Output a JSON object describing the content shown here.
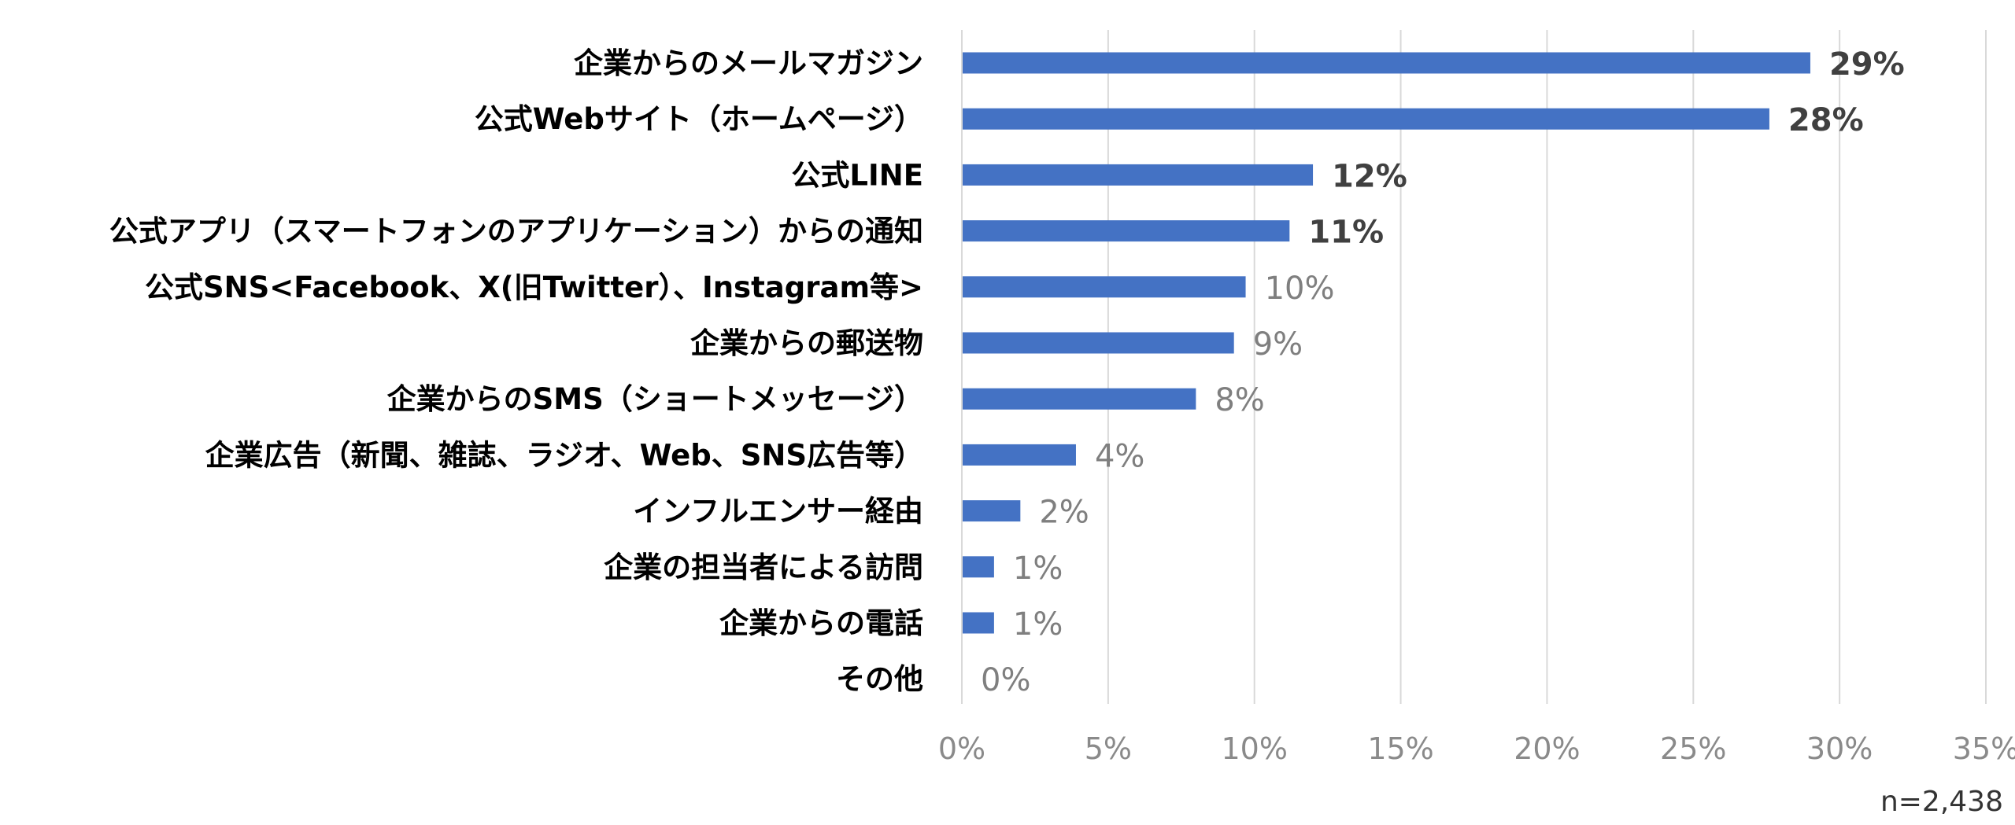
{
  "chart_data": {
    "type": "bar",
    "orientation": "horizontal",
    "categories": [
      "企業からのメールマガジン",
      "公式Webサイト（ホームページ）",
      "公式LINE",
      "公式アプリ（スマートフォンのアプリケーション）からの通知",
      "公式SNS<Facebook、X(旧Twitter）、Instagram等>",
      "企業からの郵送物",
      "企業からのSMS（ショートメッセージ）",
      "企業広告（新聞、雑誌、ラジオ、Web、SNS広告等）",
      "インフルエンサー経由",
      "企業の担当者による訪問",
      "企業からの電話",
      "その他"
    ],
    "values": [
      29,
      27.6,
      12,
      11.2,
      9.7,
      9.3,
      8,
      3.9,
      2,
      1.1,
      1.1,
      0
    ],
    "value_labels": [
      "29%",
      "28%",
      "12%",
      "11%",
      "10%",
      "9%",
      "8%",
      "4%",
      "2%",
      "1%",
      "1%",
      "0%"
    ],
    "label_bold": [
      true,
      true,
      true,
      true,
      false,
      false,
      false,
      false,
      false,
      false,
      false,
      false
    ],
    "xlim": [
      0,
      35
    ],
    "x_ticks": [
      0,
      5,
      10,
      15,
      20,
      25,
      30,
      35
    ],
    "x_tick_labels": [
      "0%",
      "5%",
      "10%",
      "15%",
      "20%",
      "25%",
      "30%",
      "35%"
    ],
    "grid": true,
    "bar_color": "#4472c4",
    "gridline_color": "#d9d9d9",
    "note": "n=2,438"
  }
}
